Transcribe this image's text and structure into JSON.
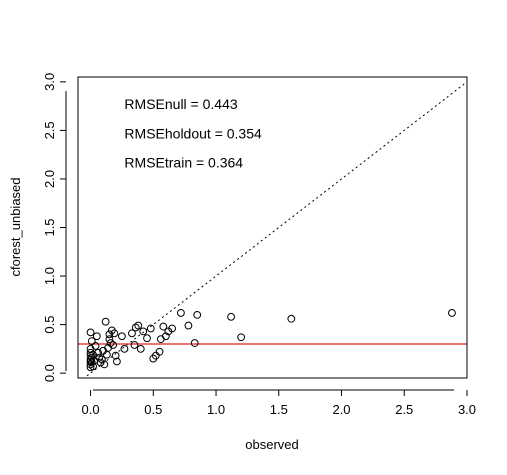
{
  "chart_data": {
    "type": "scatter",
    "title": "",
    "xlabel": "observed",
    "ylabel": "cforest_unbiased",
    "xlim": [
      -0.1,
      3.0
    ],
    "ylim": [
      -0.05,
      3.05
    ],
    "xticks": [
      0.0,
      0.5,
      1.0,
      1.5,
      2.0,
      2.5,
      3.0
    ],
    "xtick_labels": [
      "0.0",
      "0.5",
      "1.0",
      "1.5",
      "2.0",
      "2.5",
      "3.0"
    ],
    "yticks": [
      0.0,
      0.5,
      1.0,
      1.5,
      2.0,
      2.5,
      3.0
    ],
    "ytick_labels": [
      "0.0",
      "0.5",
      "1.0",
      "1.5",
      "2.0",
      "2.5",
      "3.0"
    ],
    "grid": false,
    "marker": "open-circle",
    "identity_line": {
      "style": "dotted",
      "color": "#000000",
      "slope": 1,
      "intercept": 0
    },
    "hline": {
      "y": 0.3,
      "color": "#dd2222"
    },
    "annotations": [
      {
        "text": "RMSEnull = 0.443",
        "color": "#dd2222"
      },
      {
        "text": "RMSEholdout = 0.354",
        "color": "#000000"
      },
      {
        "text": "RMSEtrain = 0.364",
        "color": "#000000"
      }
    ],
    "annotation_anchor": {
      "x": 0.27,
      "y": 2.77
    },
    "annotation_step": 0.3,
    "points": [
      [
        0.0,
        0.42
      ],
      [
        0.01,
        0.33
      ],
      [
        0.0,
        0.25
      ],
      [
        0.0,
        0.21
      ],
      [
        0.0,
        0.18
      ],
      [
        0.01,
        0.16
      ],
      [
        0.0,
        0.14
      ],
      [
        0.0,
        0.12
      ],
      [
        0.01,
        0.11
      ],
      [
        0.0,
        0.09
      ],
      [
        0.02,
        0.07
      ],
      [
        0.0,
        0.06
      ],
      [
        0.03,
        0.13
      ],
      [
        0.02,
        0.19
      ],
      [
        0.04,
        0.28
      ],
      [
        0.05,
        0.38
      ],
      [
        0.06,
        0.21
      ],
      [
        0.07,
        0.16
      ],
      [
        0.08,
        0.11
      ],
      [
        0.09,
        0.14
      ],
      [
        0.1,
        0.23
      ],
      [
        0.11,
        0.09
      ],
      [
        0.12,
        0.53
      ],
      [
        0.13,
        0.19
      ],
      [
        0.14,
        0.26
      ],
      [
        0.15,
        0.35
      ],
      [
        0.15,
        0.4
      ],
      [
        0.16,
        0.31
      ],
      [
        0.17,
        0.44
      ],
      [
        0.18,
        0.29
      ],
      [
        0.19,
        0.41
      ],
      [
        0.2,
        0.18
      ],
      [
        0.21,
        0.12
      ],
      [
        0.25,
        0.38
      ],
      [
        0.27,
        0.25
      ],
      [
        0.33,
        0.41
      ],
      [
        0.35,
        0.29
      ],
      [
        0.36,
        0.47
      ],
      [
        0.38,
        0.49
      ],
      [
        0.4,
        0.25
      ],
      [
        0.42,
        0.43
      ],
      [
        0.45,
        0.36
      ],
      [
        0.48,
        0.46
      ],
      [
        0.5,
        0.15
      ],
      [
        0.52,
        0.18
      ],
      [
        0.55,
        0.22
      ],
      [
        0.56,
        0.35
      ],
      [
        0.58,
        0.48
      ],
      [
        0.6,
        0.38
      ],
      [
        0.62,
        0.43
      ],
      [
        0.65,
        0.46
      ],
      [
        0.72,
        0.62
      ],
      [
        0.78,
        0.49
      ],
      [
        0.83,
        0.31
      ],
      [
        0.85,
        0.6
      ],
      [
        1.12,
        0.58
      ],
      [
        1.2,
        0.37
      ],
      [
        1.6,
        0.56
      ],
      [
        2.88,
        0.62
      ]
    ]
  }
}
